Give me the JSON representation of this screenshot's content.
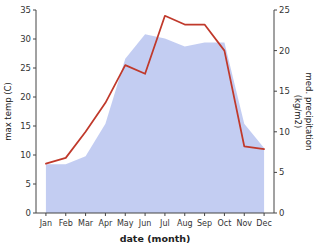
{
  "chart_data": {
    "type": "line",
    "categories": [
      "Jan",
      "Feb",
      "Mar",
      "Apr",
      "May",
      "Jun",
      "Jul",
      "Aug",
      "Sep",
      "Oct",
      "Nov",
      "Dec"
    ],
    "xlabel": "date (month)",
    "ylabel": "max temp (C)",
    "y2label": "med. precipitation\n(kg/m2)",
    "series": [
      {
        "type": "area",
        "axis": "y2",
        "color": "#b8c4f0",
        "values": [
          6.0,
          6.0,
          7.0,
          11.0,
          19.0,
          22.0,
          21.5,
          20.5,
          21.0,
          21.0,
          11.0,
          8.0
        ]
      },
      {
        "type": "line",
        "color": "#c0392b",
        "values": [
          8.5,
          9.5,
          14.0,
          19.0,
          25.5,
          24.0,
          34.0,
          32.5,
          32.5,
          28.0,
          11.5,
          11.0
        ]
      }
    ],
    "ylim": [
      0,
      35
    ],
    "yticks": [
      0,
      5,
      10,
      15,
      20,
      25,
      30,
      35
    ],
    "y2lim": [
      0,
      25
    ],
    "y2ticks": [
      0,
      5,
      10,
      15,
      20,
      25
    ],
    "grid": false
  }
}
